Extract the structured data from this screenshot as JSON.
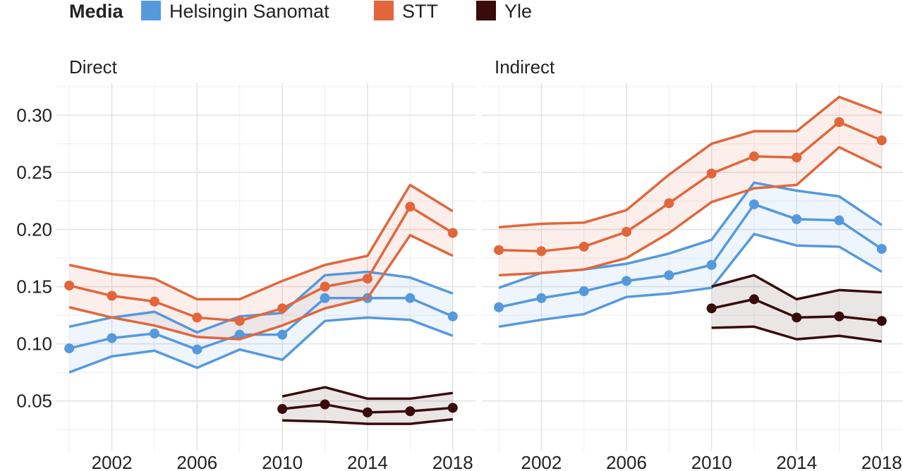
{
  "chart_data": [
    {
      "type": "line",
      "title": "Direct",
      "xlabel": "",
      "ylabel": "",
      "xlim": [
        1999.4,
        2019.1
      ],
      "ylim": [
        0.006,
        0.328
      ],
      "x_ticks": [
        2002,
        2006,
        2010,
        2014,
        2018
      ],
      "y_ticks": [
        0.05,
        0.1,
        0.15,
        0.2,
        0.25,
        0.3
      ],
      "y_tick_labels": [
        "0.05",
        "0.10",
        "0.15",
        "0.20",
        "0.25",
        "0.30"
      ],
      "grid": true,
      "series": [
        {
          "name": "Helsingin Sanomat",
          "x": [
            2000,
            2002,
            2004,
            2006,
            2008,
            2010,
            2012,
            2014,
            2016,
            2018
          ],
          "values": [
            0.096,
            0.105,
            0.109,
            0.095,
            0.108,
            0.108,
            0.14,
            0.14,
            0.14,
            0.124
          ],
          "upper": [
            0.115,
            0.123,
            0.128,
            0.11,
            0.124,
            0.127,
            0.16,
            0.163,
            0.158,
            0.144
          ],
          "lower": [
            0.075,
            0.089,
            0.094,
            0.079,
            0.095,
            0.086,
            0.12,
            0.123,
            0.121,
            0.107
          ]
        },
        {
          "name": "STT",
          "x": [
            2000,
            2002,
            2004,
            2006,
            2008,
            2010,
            2012,
            2014,
            2016,
            2018
          ],
          "values": [
            0.151,
            0.142,
            0.137,
            0.123,
            0.12,
            0.131,
            0.15,
            0.157,
            0.22,
            0.197
          ],
          "upper": [
            0.169,
            0.161,
            0.157,
            0.139,
            0.139,
            0.155,
            0.169,
            0.177,
            0.239,
            0.216
          ],
          "lower": [
            0.132,
            0.123,
            0.116,
            0.106,
            0.104,
            0.116,
            0.131,
            0.14,
            0.195,
            0.177
          ]
        },
        {
          "name": "Yle",
          "x": [
            2010,
            2012,
            2014,
            2016,
            2018
          ],
          "values": [
            0.043,
            0.047,
            0.04,
            0.041,
            0.044
          ],
          "upper": [
            0.054,
            0.062,
            0.052,
            0.052,
            0.057
          ],
          "lower": [
            0.033,
            0.032,
            0.03,
            0.03,
            0.034
          ]
        }
      ]
    },
    {
      "type": "line",
      "title": "Indirect",
      "xlabel": "",
      "ylabel": "",
      "xlim": [
        1999.2,
        2019.0
      ],
      "ylim": [
        0.006,
        0.328
      ],
      "x_ticks": [
        2002,
        2006,
        2010,
        2014,
        2018
      ],
      "y_ticks": [
        0.05,
        0.1,
        0.15,
        0.2,
        0.25,
        0.3
      ],
      "grid": true,
      "series": [
        {
          "name": "Helsingin Sanomat",
          "x": [
            2000,
            2002,
            2004,
            2006,
            2008,
            2010,
            2012,
            2014,
            2016,
            2018
          ],
          "values": [
            0.132,
            0.14,
            0.146,
            0.155,
            0.16,
            0.169,
            0.222,
            0.209,
            0.208,
            0.183
          ],
          "upper": [
            0.149,
            0.162,
            0.165,
            0.17,
            0.179,
            0.191,
            0.241,
            0.234,
            0.229,
            0.204
          ],
          "lower": [
            0.115,
            0.121,
            0.126,
            0.141,
            0.144,
            0.149,
            0.196,
            0.186,
            0.185,
            0.163
          ]
        },
        {
          "name": "STT",
          "x": [
            2000,
            2002,
            2004,
            2006,
            2008,
            2010,
            2012,
            2014,
            2016,
            2018
          ],
          "values": [
            0.182,
            0.181,
            0.185,
            0.198,
            0.223,
            0.249,
            0.264,
            0.263,
            0.294,
            0.278
          ],
          "upper": [
            0.202,
            0.205,
            0.206,
            0.217,
            0.248,
            0.275,
            0.286,
            0.286,
            0.316,
            0.302
          ],
          "lower": [
            0.16,
            0.162,
            0.165,
            0.175,
            0.197,
            0.224,
            0.236,
            0.239,
            0.272,
            0.254
          ]
        },
        {
          "name": "Yle",
          "x": [
            2010,
            2012,
            2014,
            2016,
            2018
          ],
          "values": [
            0.131,
            0.139,
            0.123,
            0.124,
            0.12
          ],
          "upper": [
            0.15,
            0.16,
            0.139,
            0.147,
            0.145
          ],
          "lower": [
            0.114,
            0.115,
            0.104,
            0.107,
            0.102
          ]
        }
      ]
    }
  ],
  "legend": {
    "title": "Media",
    "placement": "top",
    "items": [
      {
        "label": "Helsingin Sanomat",
        "color": "#5599dd"
      },
      {
        "label": "STT",
        "color": "#e2663a"
      },
      {
        "label": "Yle",
        "color": "#3a0b0b"
      }
    ]
  }
}
